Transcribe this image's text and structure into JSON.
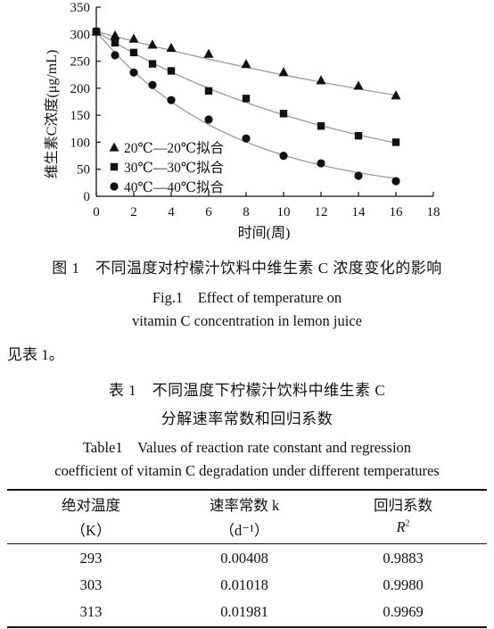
{
  "chart_data": {
    "type": "scatter",
    "xlabel": "时间(周)",
    "ylabel": "维生素C浓度(μg/mL)",
    "xlim": [
      0,
      18
    ],
    "ylim": [
      0,
      350
    ],
    "xticks": [
      "0",
      "2",
      "4",
      "6",
      "8",
      "10",
      "12",
      "14",
      "16",
      "18"
    ],
    "yticks": [
      "0",
      "50",
      "100",
      "150",
      "200",
      "250",
      "300",
      "350"
    ],
    "grid": false,
    "legend_position": "bottom-left",
    "series": [
      {
        "name": "20℃—20℃拟合",
        "marker": "triangle",
        "x": [
          0,
          1,
          2,
          3,
          4,
          6,
          8,
          10,
          12,
          14,
          16
        ],
        "y": [
          305,
          298,
          292,
          281,
          275,
          264,
          245,
          230,
          215,
          205,
          187
        ],
        "fit": {
          "c0": 305,
          "k": 0.0306
        }
      },
      {
        "name": "30℃—30℃拟合",
        "marker": "square",
        "x": [
          0,
          1,
          2,
          3,
          4,
          6,
          8,
          10,
          12,
          14,
          16
        ],
        "y": [
          305,
          284,
          266,
          245,
          232,
          195,
          181,
          153,
          130,
          112,
          100
        ],
        "fit": {
          "c0": 305,
          "k": 0.0705
        }
      },
      {
        "name": "40℃—40℃拟合",
        "marker": "circle",
        "x": [
          0,
          1,
          2,
          3,
          4,
          6,
          8,
          10,
          12,
          14,
          16
        ],
        "y": [
          305,
          261,
          229,
          206,
          178,
          142,
          107,
          75,
          61,
          38,
          28
        ],
        "fit": {
          "c0": 305,
          "k": 0.1388
        }
      }
    ],
    "colors": {
      "ink": "#111111",
      "fit_line": "#9a9a9a"
    }
  },
  "figure_caption": {
    "cn": "图 1　不同温度对柠檬汁饮料中维生素 C 浓度变化的影响",
    "en_line1": "Fig.1　Effect of temperature on",
    "en_line2": "vitamin C concentration in lemon juice"
  },
  "body_text": "见表 1。",
  "table_caption": {
    "cn_line1": "表 1　不同温度下柠檬汁饮料中维生素 C",
    "cn_line2": "分解速率常数和回归系数",
    "en_line1": "Table1　Values of reaction rate constant and regression",
    "en_line2": "coefficient of vitamin C degradation under different temperatures"
  },
  "table": {
    "headers": [
      {
        "top": "绝对温度",
        "bottom": "（K）"
      },
      {
        "top": "速率常数 k",
        "bottom": "（d⁻¹）"
      },
      {
        "top": "回归系数",
        "bottom_base": "R",
        "bottom_sup": "2"
      }
    ],
    "rows": [
      [
        "293",
        "0.00408",
        "0.9883"
      ],
      [
        "303",
        "0.01018",
        "0.9980"
      ],
      [
        "313",
        "0.01981",
        "0.9969"
      ]
    ]
  }
}
